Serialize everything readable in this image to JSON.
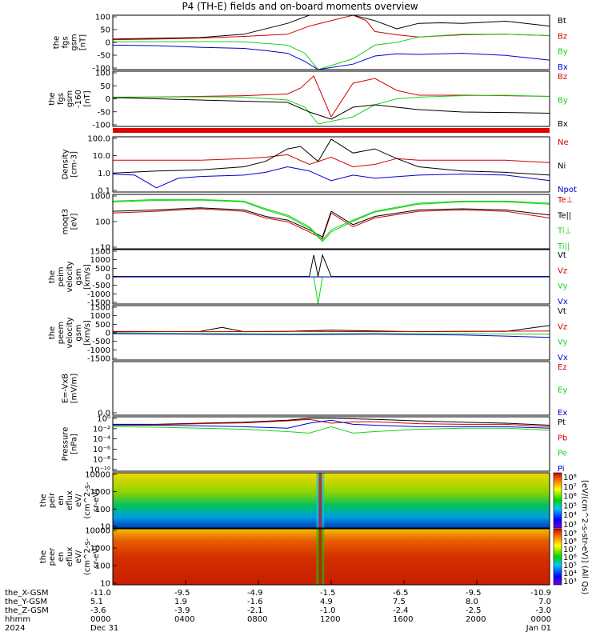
{
  "title": "P4 (TH-E) fields and on-board moments overview",
  "colors": {
    "black": "#000000",
    "red": "#d40000",
    "green": "#19d219",
    "blue": "#0000d4"
  },
  "chart_data": [
    {
      "type": "line",
      "ylabel": [
        "the",
        "fgs",
        "gsm",
        "[nT]"
      ],
      "yticks": [
        "100",
        "50",
        "0",
        "-50",
        "-100"
      ],
      "ylim": [
        -100,
        100
      ],
      "series": [
        {
          "name": "Bt",
          "color": "#000000",
          "x": [
            0,
            0.05,
            0.2,
            0.3,
            0.4,
            0.45,
            0.48,
            0.5,
            0.52,
            0.55,
            0.6,
            0.65,
            0.7,
            0.75,
            0.8,
            0.9,
            1.0
          ],
          "y": [
            12,
            14,
            18,
            30,
            70,
            100,
            100,
            100,
            100,
            100,
            80,
            50,
            70,
            72,
            70,
            78,
            60
          ]
        },
        {
          "name": "Bz",
          "color": "#d40000",
          "x": [
            0,
            0.1,
            0.2,
            0.3,
            0.4,
            0.45,
            0.55,
            0.58,
            0.6,
            0.65,
            0.7,
            0.8,
            0.9,
            1.0
          ],
          "y": [
            10,
            12,
            16,
            22,
            30,
            60,
            100,
            80,
            40,
            28,
            20,
            28,
            30,
            25
          ]
        },
        {
          "name": "By",
          "color": "#19d219",
          "x": [
            0,
            0.1,
            0.2,
            0.3,
            0.4,
            0.44,
            0.47,
            0.55,
            0.6,
            0.65,
            0.7,
            0.8,
            0.9,
            1.0
          ],
          "y": [
            2,
            2,
            3,
            2,
            -10,
            -40,
            -100,
            -60,
            -10,
            0,
            20,
            30,
            30,
            25
          ]
        },
        {
          "name": "Bx",
          "color": "#0000d4",
          "x": [
            0,
            0.1,
            0.2,
            0.3,
            0.35,
            0.4,
            0.44,
            0.47,
            0.55,
            0.6,
            0.65,
            0.7,
            0.8,
            0.9,
            1.0
          ],
          "y": [
            -10,
            -12,
            -18,
            -22,
            -30,
            -40,
            -70,
            -100,
            -80,
            -50,
            -42,
            -44,
            -40,
            -48,
            -65
          ]
        }
      ]
    },
    {
      "type": "line",
      "ylabel": [
        "the",
        "fgs",
        "gsm",
        "-160",
        "[nT]"
      ],
      "yticks": [
        "100",
        "50",
        "0",
        "-50",
        "-100"
      ],
      "ylim": [
        -120,
        110
      ],
      "series": [
        {
          "name": "Bz",
          "color": "#d40000",
          "x": [
            0,
            0.2,
            0.3,
            0.4,
            0.43,
            0.46,
            0.5,
            0.55,
            0.6,
            0.65,
            0.7,
            0.8,
            0.9,
            1.0
          ],
          "y": [
            0,
            5,
            8,
            15,
            40,
            90,
            -80,
            60,
            80,
            30,
            10,
            10,
            8,
            5
          ]
        },
        {
          "name": "By",
          "color": "#19d219",
          "x": [
            0,
            0.2,
            0.3,
            0.4,
            0.44,
            0.47,
            0.55,
            0.6,
            0.65,
            0.7,
            0.8,
            0.9,
            1.0
          ],
          "y": [
            2,
            3,
            2,
            -10,
            -40,
            -110,
            -80,
            -30,
            -5,
            2,
            8,
            10,
            5
          ]
        },
        {
          "name": "Bx",
          "color": "#000000",
          "x": [
            0,
            0.1,
            0.2,
            0.3,
            0.4,
            0.45,
            0.5,
            0.55,
            0.6,
            0.65,
            0.7,
            0.8,
            0.9,
            1.0
          ],
          "y": [
            0,
            -5,
            -10,
            -15,
            -20,
            -60,
            -90,
            -40,
            -30,
            -40,
            -50,
            -60,
            -62,
            -65
          ]
        }
      ]
    },
    {
      "type": "line",
      "ylabel": [
        "Density",
        "[cm-3]"
      ],
      "yticks": [
        "100.0",
        "10.0",
        "1.0",
        "0.1"
      ],
      "ylog": true,
      "ylim": [
        0.03,
        300
      ],
      "series": [
        {
          "name": "Ne",
          "color": "#d40000",
          "x": [
            0,
            0.05,
            0.1,
            0.2,
            0.3,
            0.35,
            0.4,
            0.45,
            0.5,
            0.55,
            0.6,
            0.65,
            0.7,
            0.8,
            0.9,
            1.0
          ],
          "y": [
            6,
            6,
            6,
            6,
            8,
            10,
            15,
            3,
            10,
            2,
            3,
            8,
            6,
            6,
            6,
            4
          ]
        },
        {
          "name": "Ni",
          "color": "#000000",
          "x": [
            0,
            0.1,
            0.2,
            0.3,
            0.35,
            0.4,
            0.43,
            0.47,
            0.5,
            0.55,
            0.6,
            0.65,
            0.7,
            0.8,
            0.9,
            1.0
          ],
          "y": [
            0.7,
            1,
            1.2,
            2,
            5,
            40,
            60,
            5,
            200,
            20,
            40,
            8,
            2,
            1,
            0.8,
            0.5
          ]
        },
        {
          "name": "Npot",
          "color": "#0000d4",
          "x": [
            0,
            0.05,
            0.1,
            0.15,
            0.2,
            0.3,
            0.35,
            0.4,
            0.45,
            0.5,
            0.55,
            0.6,
            0.7,
            0.8,
            0.9,
            1.0
          ],
          "y": [
            0.6,
            0.5,
            0.06,
            0.3,
            0.4,
            0.5,
            0.8,
            2,
            1,
            0.2,
            0.5,
            0.3,
            0.5,
            0.6,
            0.5,
            0.2
          ]
        }
      ]
    },
    {
      "type": "line",
      "ylabel": [
        "moqt3",
        "[eV]"
      ],
      "yticks": [
        "1000",
        "100",
        "10"
      ],
      "ylog": true,
      "ylim": [
        3,
        5000
      ],
      "series": [
        {
          "name": "Te⊥",
          "color": "#d40000",
          "x": [
            0,
            0.1,
            0.2,
            0.3,
            0.35,
            0.4,
            0.45,
            0.48,
            0.5,
            0.55,
            0.6,
            0.7,
            0.8,
            0.9,
            1.0
          ],
          "y": [
            400,
            500,
            700,
            500,
            200,
            120,
            30,
            12,
            400,
            60,
            200,
            500,
            600,
            500,
            200
          ]
        },
        {
          "name": "Te||",
          "color": "#000000",
          "x": [
            0,
            0.1,
            0.2,
            0.3,
            0.35,
            0.4,
            0.45,
            0.48,
            0.5,
            0.55,
            0.6,
            0.7,
            0.8,
            0.9,
            1.0
          ],
          "y": [
            500,
            600,
            800,
            600,
            250,
            150,
            40,
            15,
            500,
            80,
            250,
            600,
            700,
            600,
            300
          ]
        },
        {
          "name": "Ti⊥",
          "color": "#19d219",
          "x": [
            0,
            0.1,
            0.2,
            0.3,
            0.35,
            0.4,
            0.45,
            0.48,
            0.5,
            0.55,
            0.6,
            0.7,
            0.8,
            0.9,
            1.0
          ],
          "y": [
            2000,
            2500,
            2500,
            2000,
            700,
            300,
            60,
            10,
            40,
            150,
            500,
            1500,
            2000,
            2000,
            1500
          ]
        },
        {
          "name": "Ti||",
          "color": "#19d219",
          "x": [
            0,
            0.1,
            0.2,
            0.3,
            0.35,
            0.4,
            0.45,
            0.48,
            0.5,
            0.55,
            0.6,
            0.7,
            0.8,
            0.9,
            1.0
          ],
          "y": [
            1800,
            2200,
            2300,
            1800,
            600,
            250,
            50,
            8,
            30,
            130,
            450,
            1300,
            1800,
            1800,
            1300
          ]
        }
      ]
    },
    {
      "type": "line",
      "ylabel": [
        "the",
        "peim",
        "velocity",
        "gsm",
        "[km/s]"
      ],
      "yticks": [
        "1500",
        "1000",
        "500",
        "0",
        "-500",
        "-1000",
        "-1500"
      ],
      "ylim": [
        -1500,
        1500
      ],
      "series": [
        {
          "name": "Vt",
          "color": "#000000",
          "x": [
            0,
            0.2,
            0.4,
            0.45,
            0.46,
            0.47,
            0.48,
            0.5,
            0.6,
            0.8,
            1.0
          ],
          "y": [
            20,
            20,
            20,
            20,
            1200,
            20,
            1200,
            20,
            20,
            20,
            20
          ]
        },
        {
          "name": "Vz",
          "color": "#d40000",
          "x": [
            0,
            0.5,
            1.0
          ],
          "y": [
            0,
            0,
            0
          ]
        },
        {
          "name": "Vy",
          "color": "#19d219",
          "x": [
            0,
            0.46,
            0.47,
            0.48,
            1.0
          ],
          "y": [
            0,
            0,
            -1500,
            0,
            0
          ]
        },
        {
          "name": "Vx",
          "color": "#0000d4",
          "x": [
            0,
            0.5,
            1.0
          ],
          "y": [
            -5,
            -5,
            -5
          ]
        }
      ]
    },
    {
      "type": "line",
      "ylabel": [
        "the",
        "peem",
        "velocity",
        "gsm",
        "[km/s]"
      ],
      "yticks": [
        "1500",
        "1000",
        "500",
        "0",
        "-500",
        "-1000",
        "-1500"
      ],
      "ylim": [
        -1500,
        1500
      ],
      "series": [
        {
          "name": "Vt",
          "color": "#000000",
          "x": [
            0,
            0.1,
            0.2,
            0.25,
            0.3,
            0.4,
            0.5,
            0.6,
            0.7,
            0.8,
            0.9,
            1.0
          ],
          "y": [
            50,
            60,
            80,
            300,
            60,
            80,
            150,
            100,
            60,
            80,
            80,
            400
          ]
        },
        {
          "name": "Vz",
          "color": "#d40000",
          "x": [
            0,
            0.2,
            0.4,
            0.6,
            0.8,
            1.0
          ],
          "y": [
            80,
            60,
            80,
            60,
            80,
            100
          ]
        },
        {
          "name": "Vy",
          "color": "#19d219",
          "x": [
            0,
            0.2,
            0.4,
            0.6,
            0.8,
            1.0
          ],
          "y": [
            -20,
            -40,
            -60,
            -40,
            -50,
            -80
          ]
        },
        {
          "name": "Vx",
          "color": "#0000d4",
          "x": [
            0,
            0.2,
            0.4,
            0.6,
            0.8,
            1.0
          ],
          "y": [
            -50,
            -80,
            -100,
            -80,
            -120,
            -250
          ]
        }
      ]
    },
    {
      "type": "line",
      "ylabel": [
        "E=-VxB",
        "[mV/m]"
      ],
      "yticks": [
        "0.0"
      ],
      "series": [
        {
          "name": "Ez",
          "color": "#d40000",
          "x": [],
          "y": []
        },
        {
          "name": "Ey",
          "color": "#19d219",
          "x": [],
          "y": []
        },
        {
          "name": "Ex",
          "color": "#0000d4",
          "x": [],
          "y": []
        }
      ]
    },
    {
      "type": "line",
      "ylabel": [
        "Pressure",
        "[nPa]"
      ],
      "yticks": [
        "10⁰",
        "10⁻²",
        "10⁻⁴",
        "10⁻⁶",
        "10⁻⁸",
        "10⁻¹⁰"
      ],
      "ylog": true,
      "ylim": [
        1e-10,
        10
      ],
      "series": [
        {
          "name": "Pt",
          "color": "#000000",
          "x": [
            0,
            0.1,
            0.2,
            0.3,
            0.4,
            0.45,
            0.5,
            0.55,
            0.6,
            0.7,
            0.8,
            0.9,
            1.0
          ],
          "y": [
            0.3,
            0.3,
            0.5,
            0.8,
            2,
            5,
            5,
            4,
            3,
            1.5,
            0.8,
            0.5,
            0.2
          ]
        },
        {
          "name": "Pb",
          "color": "#d40000",
          "x": [
            0,
            0.1,
            0.2,
            0.3,
            0.4,
            0.45,
            0.5,
            0.55,
            0.6,
            0.7,
            0.8,
            0.9,
            1.0
          ],
          "y": [
            0.2,
            0.25,
            0.4,
            0.6,
            1.5,
            3,
            0.5,
            1,
            1,
            0.4,
            0.3,
            0.3,
            0.1
          ]
        },
        {
          "name": "Pe",
          "color": "#19d219",
          "x": [
            0,
            0.1,
            0.2,
            0.3,
            0.4,
            0.45,
            0.5,
            0.55,
            0.6,
            0.7,
            0.8,
            0.9,
            1.0
          ],
          "y": [
            0.1,
            0.08,
            0.05,
            0.03,
            0.01,
            0.005,
            0.1,
            0.005,
            0.01,
            0.03,
            0.05,
            0.05,
            0.02
          ]
        },
        {
          "name": "Pi",
          "color": "#0000d4",
          "x": [
            0,
            0.1,
            0.2,
            0.3,
            0.4,
            0.45,
            0.5,
            0.55,
            0.6,
            0.7,
            0.8,
            0.9,
            1.0
          ],
          "y": [
            0.2,
            0.2,
            0.15,
            0.1,
            0.05,
            0.5,
            2,
            0.3,
            0.2,
            0.1,
            0.1,
            0.1,
            0.05
          ]
        }
      ]
    },
    {
      "type": "heatmap",
      "ylabel": [
        "the",
        "peir",
        "en",
        "eflux",
        "eV/",
        "(cm^2-s-",
        "sr-eV)"
      ],
      "yticks": [
        "10000",
        "1000",
        "100",
        "10"
      ],
      "ylog": true,
      "zlabel": "[eV/(cm^2-s-str-eV)] (All Qs)",
      "zticks": [
        "10⁸",
        "10⁷",
        "10⁶",
        "10⁵",
        "10⁴",
        "10³"
      ]
    },
    {
      "type": "heatmap",
      "ylabel": [
        "the",
        "peer",
        "en",
        "eflux",
        "eV/",
        "(cm^2-s-",
        "sr-eV)"
      ],
      "yticks": [
        "10000",
        "1000",
        "100",
        "10"
      ],
      "ylog": true,
      "zticks": [
        "10⁹",
        "10⁸",
        "10⁷",
        "10⁶",
        "10⁵",
        "10⁴",
        "10³"
      ]
    }
  ],
  "footer": {
    "row_labels": [
      "the_X-GSM",
      "the_Y-GSM",
      "the_Z-GSM",
      "hhmm",
      "2024"
    ],
    "columns": [
      {
        "x": "-11.0",
        "y": "5.1",
        "z": "-3.6",
        "hhmm": "0000",
        "date": "Dec 31"
      },
      {
        "x": "-9.5",
        "y": "1.9",
        "z": "-3.9",
        "hhmm": "0400",
        "date": ""
      },
      {
        "x": "-4.9",
        "y": "-1.6",
        "z": "-2.1",
        "hhmm": "0800",
        "date": ""
      },
      {
        "x": "-1.5",
        "y": "4.9",
        "z": "-1.0",
        "hhmm": "1200",
        "date": ""
      },
      {
        "x": "-6.5",
        "y": "7.5",
        "z": "-2.4",
        "hhmm": "1600",
        "date": ""
      },
      {
        "x": "-9.5",
        "y": "8.0",
        "z": "-2.5",
        "hhmm": "2000",
        "date": ""
      },
      {
        "x": "-10.9",
        "y": "7.0",
        "z": "-3.0",
        "hhmm": "0000",
        "date": "Jan 01"
      }
    ]
  }
}
